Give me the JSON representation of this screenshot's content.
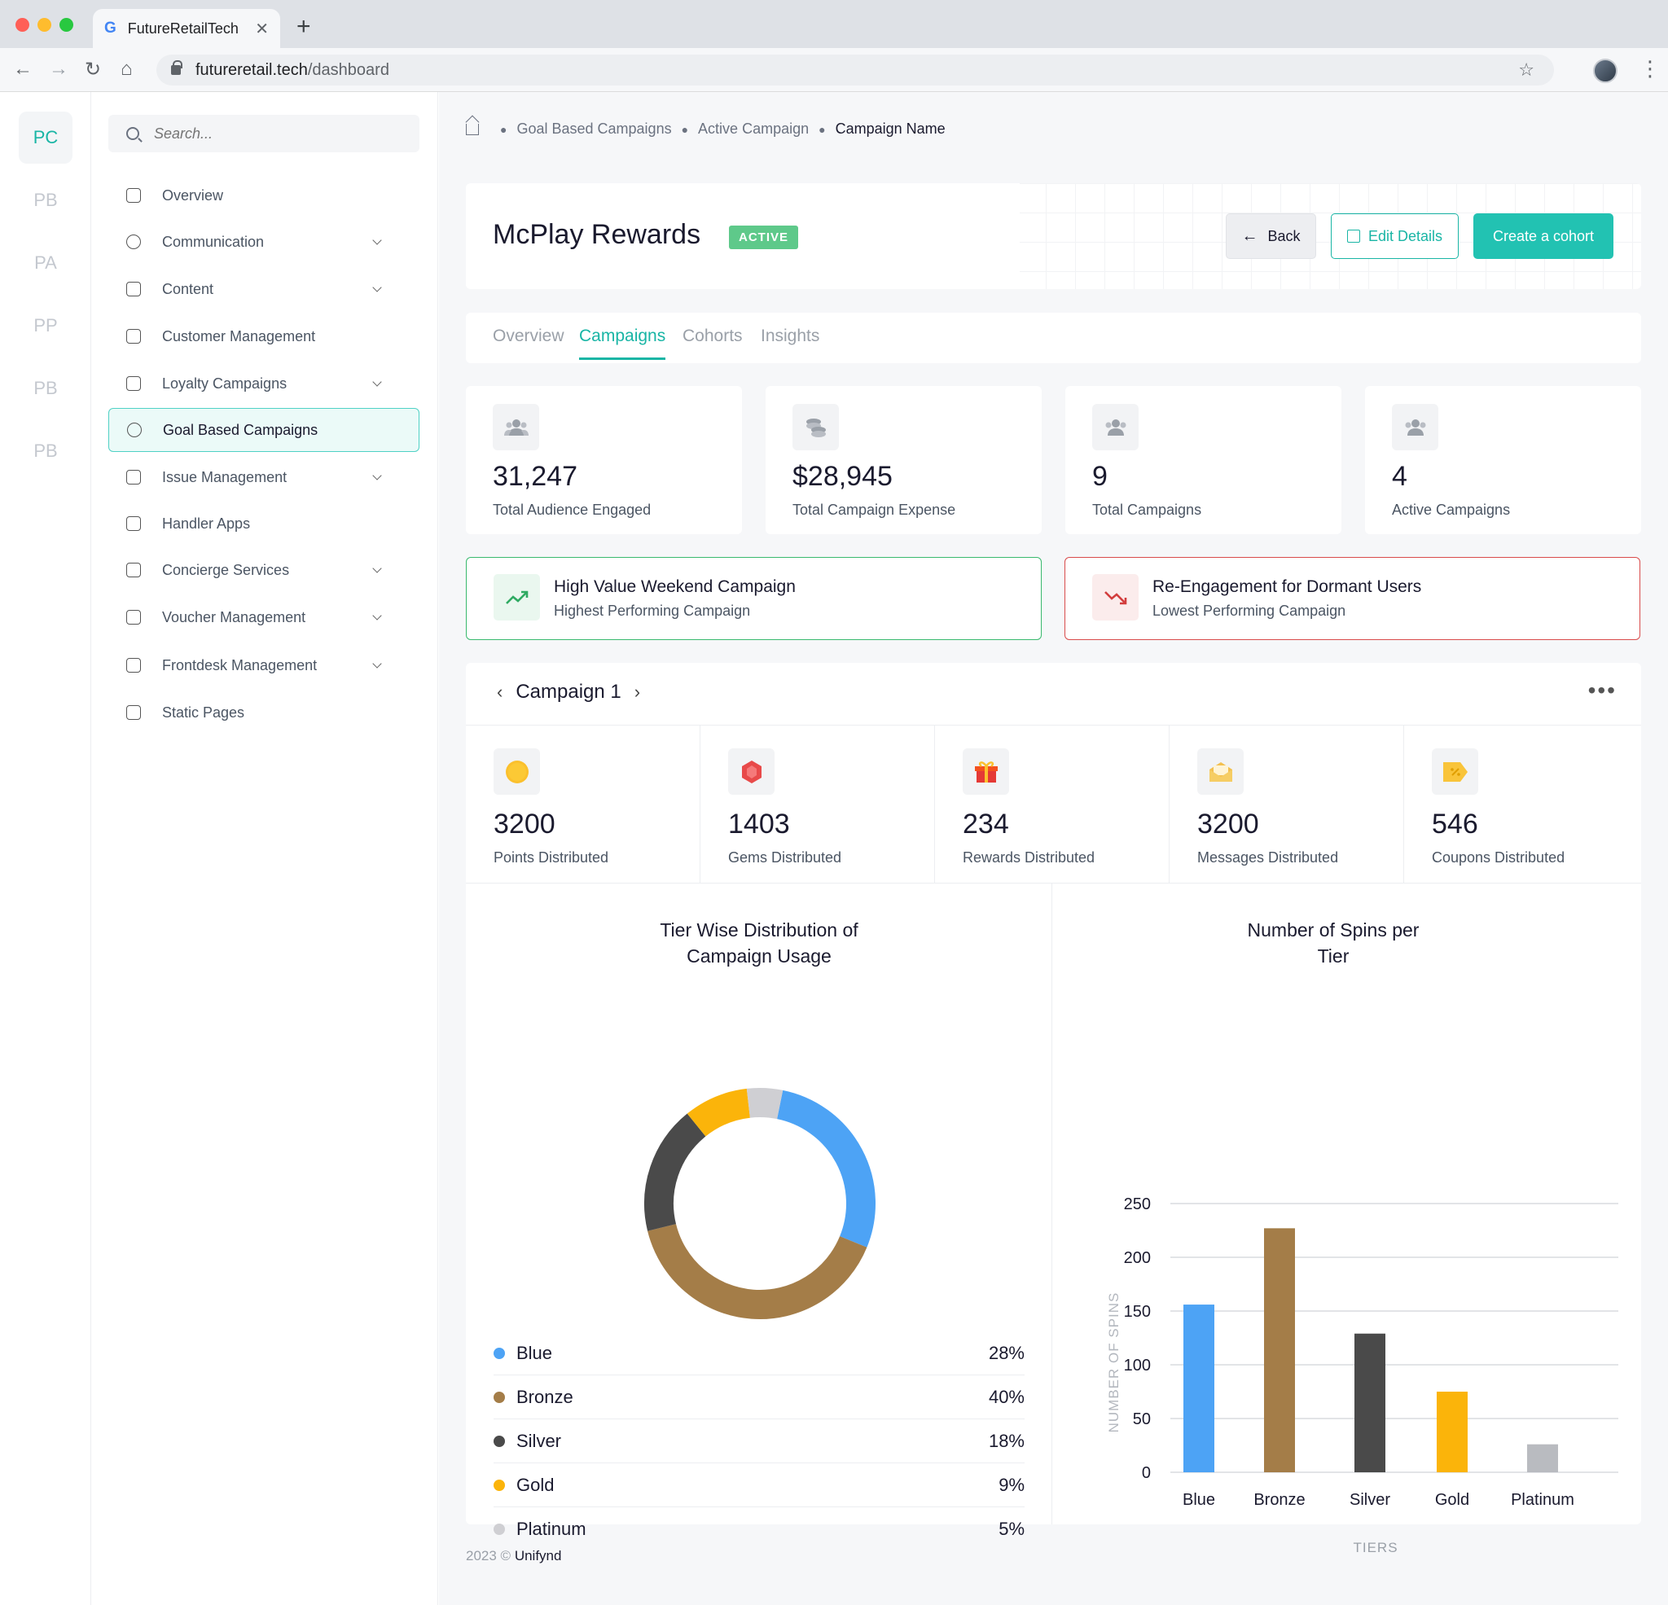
{
  "browser": {
    "tab_title": "FutureRetailTech",
    "url_host": "futureretail.tech",
    "url_path": "/dashboard"
  },
  "rail": [
    "PC",
    "PB",
    "PA",
    "PP",
    "PB",
    "PB"
  ],
  "sidebar": {
    "search_placeholder": "Search...",
    "items": [
      {
        "label": "Overview",
        "icon": "home-icon",
        "chevron": false
      },
      {
        "label": "Communication",
        "icon": "chat-icon",
        "chevron": true
      },
      {
        "label": "Content",
        "icon": "document-edit-icon",
        "chevron": true
      },
      {
        "label": "Customer Management",
        "icon": "users-icon",
        "chevron": false
      },
      {
        "label": "Loyalty Campaigns",
        "icon": "star-icon",
        "chevron": true
      },
      {
        "label": "Goal Based Campaigns",
        "icon": "target-icon",
        "chevron": false
      },
      {
        "label": "Issue Management",
        "icon": "list-icon",
        "chevron": true
      },
      {
        "label": "Handler Apps",
        "icon": "grid-icon",
        "chevron": false
      },
      {
        "label": "Concierge Services",
        "icon": "bell-icon",
        "chevron": true
      },
      {
        "label": "Voucher Management",
        "icon": "voucher-icon",
        "chevron": true
      },
      {
        "label": "Frontdesk Management",
        "icon": "inbox-icon",
        "chevron": true
      },
      {
        "label": "Static Pages",
        "icon": "file-icon",
        "chevron": false
      }
    ]
  },
  "breadcrumb": {
    "items": [
      "Goal Based Campaigns",
      "Active Campaign"
    ],
    "current": "Campaign Name"
  },
  "header": {
    "title": "McPlay Rewards",
    "status": "ACTIVE",
    "back_label": "Back",
    "edit_label": "Edit Details",
    "create_label": "Create a cohort"
  },
  "tabs": [
    "Overview",
    "Campaigns",
    "Cohorts",
    "Insights"
  ],
  "stats": [
    {
      "value": "31,247",
      "label": "Total Audience Engaged",
      "icon": "users-icon"
    },
    {
      "value": "$28,945",
      "label": "Total Campaign Expense",
      "icon": "coins-icon"
    },
    {
      "value": "9",
      "label": "Total Campaigns",
      "icon": "users-icon"
    },
    {
      "value": "4",
      "label": "Active Campaigns",
      "icon": "users-icon"
    }
  ],
  "performance": {
    "best": {
      "title": "High Value Weekend Campaign",
      "subtitle": "Highest Performing Campaign"
    },
    "worst": {
      "title": "Re-Engagement for Dormant Users",
      "subtitle": "Lowest Performing Campaign"
    }
  },
  "campaign": {
    "name": "Campaign 1",
    "metrics": [
      {
        "value": "3200",
        "label": "Points Distributed",
        "icon": "coin-icon"
      },
      {
        "value": "1403",
        "label": "Gems Distributed",
        "icon": "gem-icon"
      },
      {
        "value": "234",
        "label": "Rewards Distributed",
        "icon": "gift-icon"
      },
      {
        "value": "3200",
        "label": "Messages Distributed",
        "icon": "envelope-icon"
      },
      {
        "value": "546",
        "label": "Coupons Distributed",
        "icon": "coupon-icon"
      }
    ]
  },
  "chart_data": [
    {
      "type": "pie",
      "title": "Tier Wise Distribution of Campaign Usage",
      "categories": [
        "Blue",
        "Bronze",
        "Silver",
        "Gold",
        "Platinum"
      ],
      "values": [
        28,
        40,
        18,
        9,
        5
      ],
      "value_labels": [
        "28%",
        "40%",
        "18%",
        "9%",
        "5%"
      ],
      "colors": [
        "#4da3f5",
        "#a47d48",
        "#4a4a4a",
        "#fbb40a",
        "#cfcfd3"
      ],
      "donut": true
    },
    {
      "type": "bar",
      "title": "Number of Spins per Tier",
      "categories": [
        "Blue",
        "Bronze",
        "Silver",
        "Gold",
        "Platinum"
      ],
      "values": [
        156,
        227,
        129,
        75,
        26
      ],
      "colors": [
        "#4da3f5",
        "#a47d48",
        "#4a4a4a",
        "#fbb40a",
        "#b9bbc0"
      ],
      "xlabel": "TIERS",
      "ylabel": "NUMBER OF SPINS",
      "ylim": [
        0,
        250
      ],
      "yticks": [
        0,
        50,
        100,
        150,
        200,
        250
      ],
      "grid": true
    }
  ],
  "footer": {
    "year": "2023 ©",
    "brand": "Unifynd"
  }
}
